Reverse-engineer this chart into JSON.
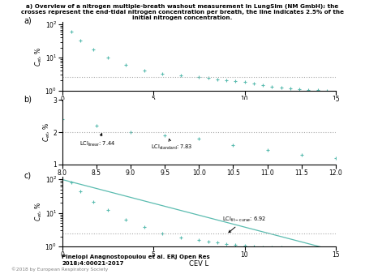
{
  "title": "a) Overview of a nitrogen multiple-breath washout measurement in LungSim (NM GmbH); the\ncrosses represent the end-tidal nitrogen concentration per breath, the line indicates 2.5% of the\ninitial nitrogen concentration.",
  "color_crosses": "#5bbcb0",
  "color_line": "#5bbcb0",
  "color_dashed": "#aaaaaa",
  "ylabel": "$C_{et}$, %",
  "xlabel": "CEV L",
  "panel_a_label": "a)",
  "panel_b_label": "b)",
  "panel_c_label": "c)",
  "threshold_a": 2.5,
  "threshold_b": 2.0,
  "threshold_c": 2.5,
  "panel_a": {
    "xlim": [
      0,
      15
    ],
    "ylim_log": [
      1.0,
      120.0
    ],
    "xticks": [
      0,
      5,
      10,
      15
    ],
    "crosses_x": [
      0.5,
      1.0,
      1.7,
      2.5,
      3.5,
      4.5,
      5.5,
      6.5,
      7.5,
      8.0,
      8.5,
      9.0,
      9.5,
      10.0,
      10.5,
      11.0,
      11.5,
      12.0,
      12.5,
      13.0,
      13.5,
      14.0,
      14.5
    ],
    "crosses_y": [
      60,
      32,
      18,
      10,
      6.0,
      4.0,
      3.2,
      2.8,
      2.6,
      2.4,
      2.2,
      2.0,
      1.9,
      1.8,
      1.6,
      1.45,
      1.3,
      1.2,
      1.15,
      1.1,
      1.05,
      1.02,
      1.0
    ]
  },
  "panel_b": {
    "xlim": [
      8.0,
      12.0
    ],
    "ylim": [
      1.0,
      3.0
    ],
    "xticks": [
      8.0,
      8.5,
      9.0,
      9.5,
      10.0,
      10.5,
      11.0,
      11.5,
      12.0
    ],
    "yticks": [
      1,
      2,
      3
    ],
    "crosses_x": [
      8.0,
      8.5,
      9.0,
      9.5,
      10.0,
      10.5,
      11.0,
      11.5,
      12.0
    ],
    "crosses_y": [
      2.4,
      2.2,
      2.0,
      1.9,
      1.8,
      1.6,
      1.45,
      1.3,
      1.2
    ],
    "lci_linear": 7.44,
    "lci_standard": 7.83
  },
  "panel_c": {
    "xlim": [
      0,
      15
    ],
    "ylim_log": [
      1.0,
      120.0
    ],
    "xticks": [
      0,
      5,
      10,
      15
    ],
    "crosses_x": [
      0.5,
      1.0,
      1.7,
      2.5,
      3.5,
      4.5,
      5.5,
      6.5,
      7.5,
      8.0,
      8.5,
      9.0,
      9.5,
      10.0,
      10.5,
      11.0,
      11.5,
      12.0,
      12.5,
      13.0,
      13.5,
      14.0,
      14.5
    ],
    "crosses_y": [
      80,
      45,
      22,
      12,
      6.5,
      3.8,
      2.5,
      1.9,
      1.6,
      1.45,
      1.3,
      1.2,
      1.1,
      1.05,
      1.0,
      0.98,
      0.96,
      0.94,
      0.92,
      0.91,
      0.9,
      0.89,
      0.88
    ],
    "lci_fit_curve": 6.92
  },
  "footer1": "Pinelopi Anagnostopoulou et al. ERJ Open Res",
  "footer2": "2018;4:00021-2017",
  "copyright": "©2018 by European Respiratory Society"
}
